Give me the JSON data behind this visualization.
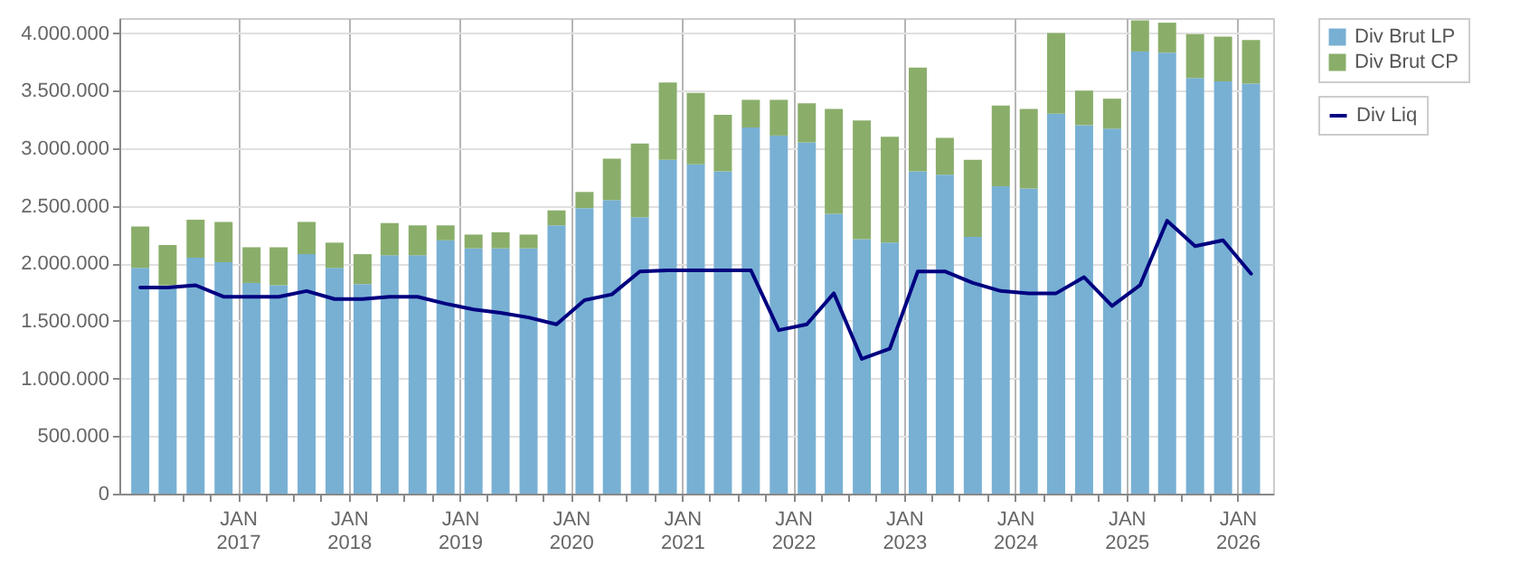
{
  "chart_data": {
    "type": "bar",
    "stacked": true,
    "legend": "top right",
    "grid": true,
    "line_style": "solid",
    "marker": "none",
    "x": [
      "2016-02-15",
      "2016-05-15",
      "2016-08-15",
      "2016-11-15",
      "2017-02-15",
      "2017-05-15",
      "2017-08-15",
      "2017-11-15",
      "2018-02-15",
      "2018-05-15",
      "2018-08-15",
      "2018-11-15",
      "2019-02-15",
      "2019-05-15",
      "2019-08-15",
      "2019-11-15",
      "2020-02-15",
      "2020-05-15",
      "2020-08-15",
      "2020-11-15",
      "2021-02-15",
      "2021-05-15",
      "2021-08-15",
      "2021-11-15",
      "2022-02-15",
      "2022-05-15",
      "2022-08-15",
      "2022-11-15",
      "2023-02-15",
      "2023-05-15",
      "2023-08-15",
      "2023-11-15",
      "2024-02-15",
      "2024-05-15",
      "2024-08-15",
      "2024-11-15",
      "2025-02-15",
      "2025-05-15",
      "2025-08-15",
      "2025-11-15",
      "2026-02-15"
    ],
    "xlim": [
      "2016-01-07",
      "2026-03-30"
    ],
    "xticks": [
      {
        "value": "2016-04-01",
        "label": null
      },
      {
        "value": "2016-07-01",
        "label": null
      },
      {
        "value": "2016-10-01",
        "label": null
      },
      {
        "value": "2017-01-01",
        "label": "JAN\n2017"
      },
      {
        "value": "2017-04-01",
        "label": null
      },
      {
        "value": "2017-07-01",
        "label": null
      },
      {
        "value": "2017-10-01",
        "label": null
      },
      {
        "value": "2018-01-01",
        "label": "JAN\n2018"
      },
      {
        "value": "2018-04-01",
        "label": null
      },
      {
        "value": "2018-07-01",
        "label": null
      },
      {
        "value": "2018-10-01",
        "label": null
      },
      {
        "value": "2019-01-01",
        "label": "JAN\n2019"
      },
      {
        "value": "2019-04-01",
        "label": null
      },
      {
        "value": "2019-07-01",
        "label": null
      },
      {
        "value": "2019-10-01",
        "label": null
      },
      {
        "value": "2020-01-01",
        "label": "JAN\n2020"
      },
      {
        "value": "2020-04-01",
        "label": null
      },
      {
        "value": "2020-07-01",
        "label": null
      },
      {
        "value": "2020-10-01",
        "label": null
      },
      {
        "value": "2021-01-01",
        "label": "JAN\n2021"
      },
      {
        "value": "2021-04-01",
        "label": null
      },
      {
        "value": "2021-07-01",
        "label": null
      },
      {
        "value": "2021-10-01",
        "label": null
      },
      {
        "value": "2022-01-01",
        "label": "JAN\n2022"
      },
      {
        "value": "2022-04-01",
        "label": null
      },
      {
        "value": "2022-07-01",
        "label": null
      },
      {
        "value": "2022-10-01",
        "label": null
      },
      {
        "value": "2023-01-01",
        "label": "JAN\n2023"
      },
      {
        "value": "2023-04-01",
        "label": null
      },
      {
        "value": "2023-07-01",
        "label": null
      },
      {
        "value": "2023-10-01",
        "label": null
      },
      {
        "value": "2024-01-01",
        "label": "JAN\n2024"
      },
      {
        "value": "2024-04-01",
        "label": null
      },
      {
        "value": "2024-07-01",
        "label": null
      },
      {
        "value": "2024-10-01",
        "label": null
      },
      {
        "value": "2025-01-01",
        "label": "JAN\n2025"
      },
      {
        "value": "2025-04-01",
        "label": null
      },
      {
        "value": "2025-07-01",
        "label": null
      },
      {
        "value": "2025-10-01",
        "label": null
      },
      {
        "value": "2026-01-01",
        "label": "JAN\n2026"
      }
    ],
    "ylim": [
      0,
      4130000
    ],
    "yticks": [
      0,
      {
        "value": 500000,
        "label": "500.000"
      },
      {
        "value": 1000000,
        "label": "1.000.000"
      },
      {
        "value": 1500000,
        "label": "1.500.000"
      },
      {
        "value": 2000000,
        "label": "2.000.000"
      },
      {
        "value": 2500000,
        "label": "2.500.000"
      },
      {
        "value": 3000000,
        "label": "3.000.000"
      },
      {
        "value": 3500000,
        "label": "3.500.000"
      },
      {
        "value": 4000000,
        "label": "4.000.000"
      }
    ],
    "series": [
      {
        "name": "Div Brut LP",
        "color": "#78b0d3",
        "values": [
          1960000,
          1810000,
          2050000,
          2010000,
          1830000,
          1810000,
          2080000,
          1960000,
          1820000,
          2070000,
          2070000,
          2200000,
          2130000,
          2130000,
          2130000,
          2330000,
          2480000,
          2550000,
          2400000,
          2900000,
          2860000,
          2800000,
          3180000,
          3110000,
          3050000,
          2430000,
          2210000,
          2180000,
          2800000,
          2770000,
          2230000,
          2670000,
          2650000,
          3300000,
          3200000,
          3170000,
          3840000,
          3830000,
          3610000,
          3580000,
          3560000
        ]
      },
      {
        "name": "Div Brut CP",
        "color": "#8aae6a",
        "values": [
          360000,
          350000,
          330000,
          350000,
          310000,
          330000,
          280000,
          220000,
          260000,
          280000,
          260000,
          130000,
          120000,
          140000,
          120000,
          130000,
          140000,
          360000,
          640000,
          670000,
          620000,
          490000,
          240000,
          310000,
          340000,
          910000,
          1030000,
          920000,
          900000,
          320000,
          670000,
          700000,
          690000,
          700000,
          300000,
          260000,
          270000,
          260000,
          380000,
          390000,
          380000
        ]
      },
      {
        "name": "Div Liq",
        "type": "line",
        "color": "#000080",
        "values": [
          1790000,
          1790000,
          1810000,
          1710000,
          1710000,
          1710000,
          1760000,
          1690000,
          1690000,
          1710000,
          1710000,
          1650000,
          1600000,
          1570000,
          1530000,
          1470000,
          1680000,
          1730000,
          1930000,
          1940000,
          1940000,
          1940000,
          1940000,
          1420000,
          1470000,
          1740000,
          1170000,
          1260000,
          1930000,
          1930000,
          1830000,
          1760000,
          1740000,
          1740000,
          1880000,
          1630000,
          1810000,
          2370000,
          2150000,
          2200000,
          1910000
        ]
      }
    ]
  }
}
